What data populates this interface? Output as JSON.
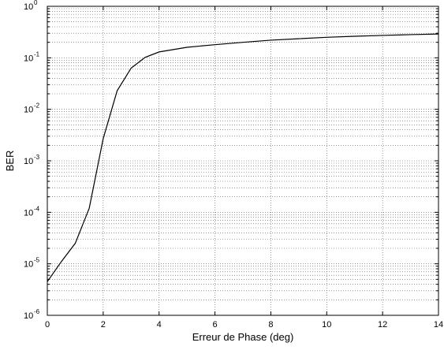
{
  "chart_data": {
    "type": "line",
    "title": "",
    "xlabel": "Erreur de Phase (deg)",
    "ylabel": "BER",
    "xlim": [
      0,
      14
    ],
    "ylim": [
      1e-06,
      1
    ],
    "yscale": "log",
    "grid": true,
    "x_ticks": [
      0,
      2,
      4,
      6,
      8,
      10,
      12,
      14
    ],
    "x_tick_labels": [
      "0",
      "2",
      "4",
      "6",
      "8",
      "10",
      "12",
      "14"
    ],
    "y_ticks": [
      {
        "value": 1,
        "base": "10",
        "exp": "0"
      },
      {
        "value": 0.1,
        "base": "10",
        "exp": "-1"
      },
      {
        "value": 0.01,
        "base": "10",
        "exp": "-2"
      },
      {
        "value": 0.001,
        "base": "10",
        "exp": "-3"
      },
      {
        "value": 0.0001,
        "base": "10",
        "exp": "-4"
      },
      {
        "value": 1e-05,
        "base": "10",
        "exp": "-5"
      },
      {
        "value": 1e-06,
        "base": "10",
        "exp": "-6"
      }
    ],
    "series": [
      {
        "color": "#000000",
        "x": [
          0,
          0.5,
          1,
          1.5,
          2,
          2.5,
          3,
          3.5,
          4,
          5,
          6,
          7,
          8,
          9,
          10,
          11,
          12,
          13,
          14
        ],
        "y": [
          4.5e-06,
          1.1e-05,
          2.5e-05,
          0.00012,
          0.0027,
          0.023,
          0.063,
          0.102,
          0.13,
          0.16,
          0.18,
          0.2,
          0.22,
          0.235,
          0.25,
          0.262,
          0.272,
          0.282,
          0.29
        ]
      }
    ]
  }
}
